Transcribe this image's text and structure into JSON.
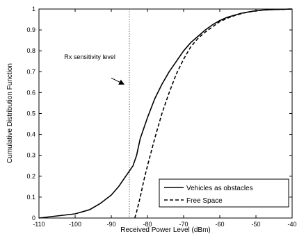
{
  "chart_data": {
    "type": "line",
    "xlabel": "Received Power Level (dBm)",
    "ylabel": "Cumulative Distribution Function",
    "xlim": [
      -110,
      -40
    ],
    "ylim": [
      0,
      1
    ],
    "x_ticks": [
      -110,
      -100,
      -90,
      -80,
      -70,
      -60,
      -50,
      -40
    ],
    "y_ticks": [
      0,
      0.1,
      0.2,
      0.3,
      0.4,
      0.5,
      0.6,
      0.7,
      0.8,
      0.9,
      1
    ],
    "grid": false,
    "legend_position": "lower-right",
    "series": [
      {
        "name": "Vehicles as obstacles",
        "style": "solid",
        "color": "#000000",
        "x": [
          -110,
          -105,
          -100,
          -96,
          -93,
          -90,
          -88,
          -86,
          -84,
          -83,
          -82,
          -80,
          -78,
          -76,
          -74,
          -72,
          -70,
          -68,
          -66,
          -64,
          -62,
          -60,
          -58,
          -56,
          -54,
          -52,
          -50,
          -48,
          -46,
          -44,
          -42,
          -40
        ],
        "y": [
          0.0,
          0.01,
          0.02,
          0.04,
          0.07,
          0.11,
          0.15,
          0.2,
          0.25,
          0.3,
          0.38,
          0.48,
          0.57,
          0.64,
          0.7,
          0.75,
          0.8,
          0.84,
          0.87,
          0.9,
          0.925,
          0.945,
          0.96,
          0.97,
          0.98,
          0.986,
          0.992,
          0.995,
          0.997,
          0.998,
          0.999,
          1.0
        ]
      },
      {
        "name": "Free Space",
        "style": "dashed",
        "color": "#000000",
        "x": [
          -83.5,
          -83,
          -82,
          -81,
          -80,
          -78,
          -76,
          -74,
          -72,
          -70,
          -68,
          -66,
          -64,
          -62,
          -60,
          -58,
          -56,
          -54,
          -52,
          -50,
          -48,
          -46,
          -44,
          -42,
          -40
        ],
        "y": [
          0.0,
          0.03,
          0.1,
          0.18,
          0.25,
          0.38,
          0.5,
          0.6,
          0.69,
          0.76,
          0.82,
          0.86,
          0.89,
          0.915,
          0.94,
          0.955,
          0.968,
          0.978,
          0.986,
          0.991,
          0.995,
          0.997,
          0.998,
          0.999,
          1.0
        ]
      }
    ],
    "reference_line": {
      "x": -85,
      "style": "dotted"
    },
    "annotation": {
      "text": "Rx sensitivity level",
      "text_at": [
        -103,
        0.76
      ],
      "arrow_from": [
        -90,
        0.67
      ],
      "arrow_to": [
        -86.5,
        0.64
      ]
    }
  }
}
